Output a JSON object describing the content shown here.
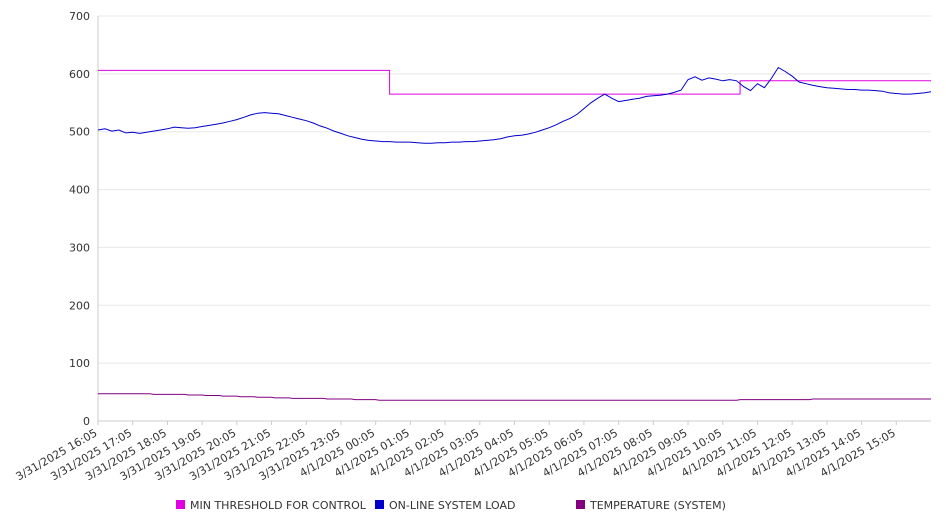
{
  "chart_data": {
    "type": "line",
    "title": "",
    "xlabel": "",
    "ylabel": "",
    "ylim": [
      0,
      700
    ],
    "y_ticks": [
      0,
      100,
      200,
      300,
      400,
      500,
      600,
      700
    ],
    "grid": true,
    "legend_position": "bottom",
    "x_tick_labels": [
      "3/31/2025 16:05",
      "3/31/2025 17:05",
      "3/31/2025 18:05",
      "3/31/2025 19:05",
      "3/31/2025 20:05",
      "3/31/2025 21:05",
      "3/31/2025 22:05",
      "3/31/2025 23:05",
      "4/1/2025 00:05",
      "4/1/2025 01:05",
      "4/1/2025 02:05",
      "4/1/2025 03:05",
      "4/1/2025 04:05",
      "4/1/2025 05:05",
      "4/1/2025 06:05",
      "4/1/2025 07:05",
      "4/1/2025 08:05",
      "4/1/2025 09:05",
      "4/1/2025 10:05",
      "4/1/2025 11:05",
      "4/1/2025 12:05",
      "4/1/2025 13:05",
      "4/1/2025 14:05",
      "4/1/2025 15:05"
    ],
    "x_end": 24,
    "series": [
      {
        "name": "MIN THRESHOLD FOR CONTROL",
        "color": "#e000e0",
        "points": [
          [
            0,
            606
          ],
          [
            8.4,
            606
          ],
          [
            8.4,
            565
          ],
          [
            18.5,
            565
          ],
          [
            18.5,
            588
          ],
          [
            24,
            588
          ]
        ]
      },
      {
        "name": "ON-LINE SYSTEM LOAD",
        "color": "#0000cc",
        "points": [
          [
            0,
            503
          ],
          [
            0.2,
            505
          ],
          [
            0.4,
            501
          ],
          [
            0.6,
            503
          ],
          [
            0.8,
            498
          ],
          [
            1.0,
            499
          ],
          [
            1.2,
            497
          ],
          [
            1.4,
            499
          ],
          [
            1.6,
            501
          ],
          [
            1.8,
            503
          ],
          [
            2.0,
            505
          ],
          [
            2.2,
            508
          ],
          [
            2.4,
            507
          ],
          [
            2.6,
            506
          ],
          [
            2.8,
            507
          ],
          [
            3.0,
            509
          ],
          [
            3.2,
            511
          ],
          [
            3.4,
            513
          ],
          [
            3.6,
            515
          ],
          [
            3.8,
            518
          ],
          [
            4.0,
            521
          ],
          [
            4.2,
            525
          ],
          [
            4.4,
            529
          ],
          [
            4.6,
            532
          ],
          [
            4.8,
            533
          ],
          [
            5.0,
            532
          ],
          [
            5.2,
            531
          ],
          [
            5.4,
            528
          ],
          [
            5.6,
            525
          ],
          [
            5.8,
            522
          ],
          [
            6.0,
            519
          ],
          [
            6.2,
            515
          ],
          [
            6.4,
            510
          ],
          [
            6.6,
            506
          ],
          [
            6.8,
            501
          ],
          [
            7.0,
            497
          ],
          [
            7.2,
            493
          ],
          [
            7.4,
            490
          ],
          [
            7.6,
            487
          ],
          [
            7.8,
            485
          ],
          [
            8.0,
            484
          ],
          [
            8.2,
            483
          ],
          [
            8.4,
            483
          ],
          [
            8.6,
            482
          ],
          [
            8.8,
            482
          ],
          [
            9.0,
            482
          ],
          [
            9.2,
            481
          ],
          [
            9.4,
            480
          ],
          [
            9.6,
            480
          ],
          [
            9.8,
            481
          ],
          [
            10.0,
            481
          ],
          [
            10.2,
            482
          ],
          [
            10.4,
            482
          ],
          [
            10.6,
            483
          ],
          [
            10.8,
            483
          ],
          [
            11.0,
            484
          ],
          [
            11.2,
            485
          ],
          [
            11.4,
            486
          ],
          [
            11.6,
            488
          ],
          [
            11.8,
            491
          ],
          [
            12.0,
            493
          ],
          [
            12.2,
            494
          ],
          [
            12.4,
            496
          ],
          [
            12.6,
            499
          ],
          [
            12.8,
            503
          ],
          [
            13.0,
            507
          ],
          [
            13.2,
            512
          ],
          [
            13.4,
            518
          ],
          [
            13.6,
            523
          ],
          [
            13.8,
            530
          ],
          [
            14.0,
            540
          ],
          [
            14.2,
            550
          ],
          [
            14.4,
            558
          ],
          [
            14.6,
            565
          ],
          [
            14.8,
            558
          ],
          [
            15.0,
            552
          ],
          [
            15.2,
            554
          ],
          [
            15.4,
            556
          ],
          [
            15.6,
            558
          ],
          [
            15.8,
            561
          ],
          [
            16.0,
            562
          ],
          [
            16.2,
            563
          ],
          [
            16.4,
            565
          ],
          [
            16.6,
            568
          ],
          [
            16.8,
            572
          ],
          [
            17.0,
            590
          ],
          [
            17.2,
            595
          ],
          [
            17.4,
            589
          ],
          [
            17.6,
            593
          ],
          [
            17.8,
            591
          ],
          [
            18.0,
            588
          ],
          [
            18.2,
            590
          ],
          [
            18.4,
            588
          ],
          [
            18.6,
            578
          ],
          [
            18.8,
            571
          ],
          [
            19.0,
            583
          ],
          [
            19.2,
            576
          ],
          [
            19.4,
            592
          ],
          [
            19.6,
            611
          ],
          [
            19.8,
            604
          ],
          [
            20.0,
            596
          ],
          [
            20.2,
            586
          ],
          [
            20.4,
            583
          ],
          [
            20.6,
            580
          ],
          [
            20.8,
            578
          ],
          [
            21.0,
            576
          ],
          [
            21.2,
            575
          ],
          [
            21.4,
            574
          ],
          [
            21.6,
            573
          ],
          [
            21.8,
            573
          ],
          [
            22.0,
            572
          ],
          [
            22.2,
            572
          ],
          [
            22.4,
            571
          ],
          [
            22.6,
            570
          ],
          [
            22.8,
            567
          ],
          [
            23.0,
            566
          ],
          [
            23.2,
            565
          ],
          [
            23.4,
            565
          ],
          [
            23.6,
            566
          ],
          [
            23.8,
            567
          ],
          [
            24.0,
            569
          ]
        ]
      },
      {
        "name": "TEMPERATURE (SYSTEM)",
        "color": "#800080",
        "points": [
          [
            0,
            47
          ],
          [
            1.5,
            47
          ],
          [
            1.6,
            46
          ],
          [
            2.5,
            46
          ],
          [
            2.6,
            45
          ],
          [
            3.0,
            45
          ],
          [
            3.1,
            44
          ],
          [
            3.5,
            44
          ],
          [
            3.6,
            43
          ],
          [
            4.0,
            43
          ],
          [
            4.1,
            42
          ],
          [
            4.5,
            42
          ],
          [
            4.6,
            41
          ],
          [
            5.0,
            41
          ],
          [
            5.1,
            40
          ],
          [
            5.5,
            40
          ],
          [
            5.6,
            39
          ],
          [
            6.5,
            39
          ],
          [
            6.6,
            38
          ],
          [
            7.3,
            38
          ],
          [
            7.4,
            37
          ],
          [
            8.0,
            37
          ],
          [
            8.1,
            36
          ],
          [
            18.4,
            36
          ],
          [
            18.5,
            37
          ],
          [
            20.5,
            37
          ],
          [
            20.6,
            38
          ],
          [
            24,
            38
          ]
        ]
      }
    ]
  }
}
